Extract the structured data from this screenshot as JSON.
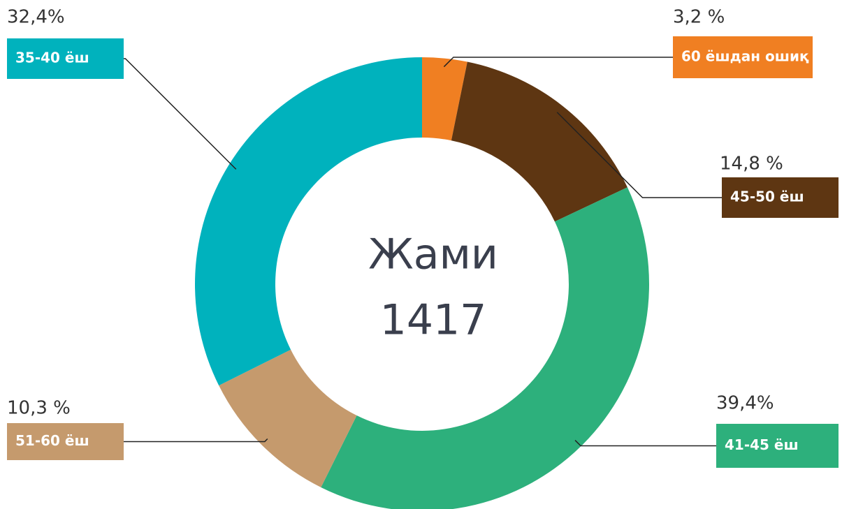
{
  "chart_data": {
    "type": "donut",
    "center_title": "Жами",
    "total": 1417,
    "categories": [
      "60 ёшдан ошиқ",
      "45-50 ёш",
      "41-45 ёш",
      "51-60 ёш",
      "35-40 ёш"
    ],
    "values": [
      3.2,
      14.8,
      39.4,
      10.3,
      32.4
    ],
    "value_labels": [
      "3,2 %",
      "14,8 %",
      "39,4%",
      "10,3 %",
      "32,4%"
    ],
    "colors": [
      "#f07f22",
      "#5e3612",
      "#2db07c",
      "#c59a6d",
      "#00b2bd"
    ]
  }
}
